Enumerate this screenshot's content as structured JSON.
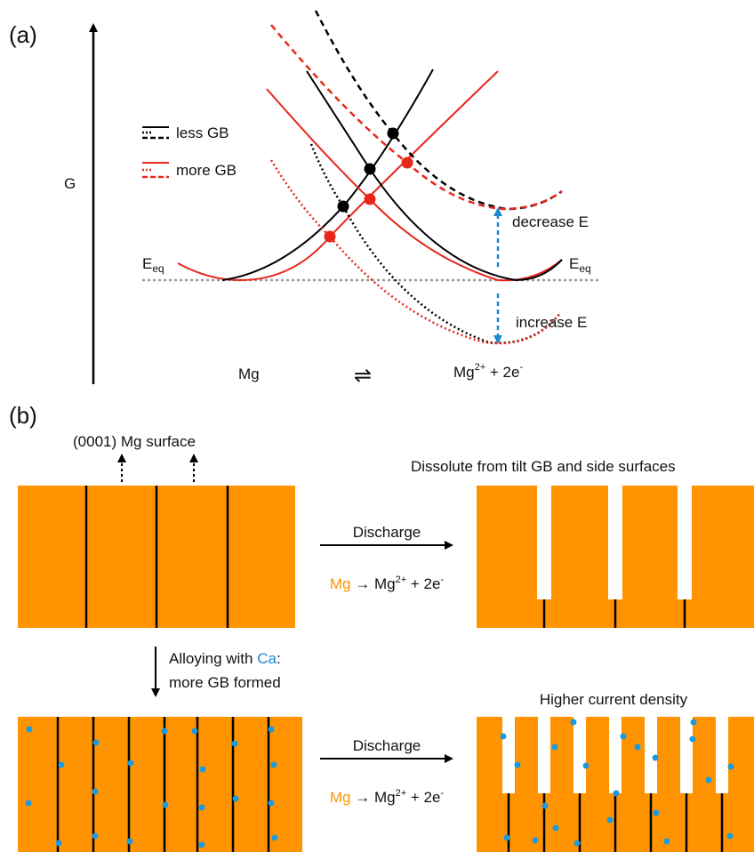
{
  "panel_a": {
    "label": "(a)",
    "y_axis": "G",
    "legend": [
      "less GB",
      "more GB"
    ],
    "eq_left": {
      "main": "E",
      "sub": "eq"
    },
    "eq_right": {
      "main": "E",
      "sub": "eq"
    },
    "decrease": "decrease E",
    "increase": "increase E",
    "reactant": "Mg",
    "equilibrium": "⇌",
    "product": {
      "ion": "Mg",
      "charge": "2+",
      "plus": " + 2e",
      "electron": "-"
    }
  },
  "panel_b": {
    "label": "(b)",
    "surface": "(0001) Mg surface",
    "dissolve": "Dissolute from tilt GB and side surfaces",
    "discharge_1": "Discharge",
    "reaction_1": {
      "reactant": "Mg",
      "arrow": " → Mg",
      "charge": "2+",
      "plus": " + 2e",
      "electron": "-"
    },
    "alloying": {
      "prefix": "Alloying with ",
      "element": "Ca",
      "suffix": ":",
      "second": "more GB formed"
    },
    "higher": "Higher current density",
    "discharge_2": "Discharge",
    "reaction_2": {
      "reactant": "Mg",
      "arrow": " → Mg",
      "charge": "2+",
      "plus": " + 2e",
      "electron": "-"
    }
  }
}
